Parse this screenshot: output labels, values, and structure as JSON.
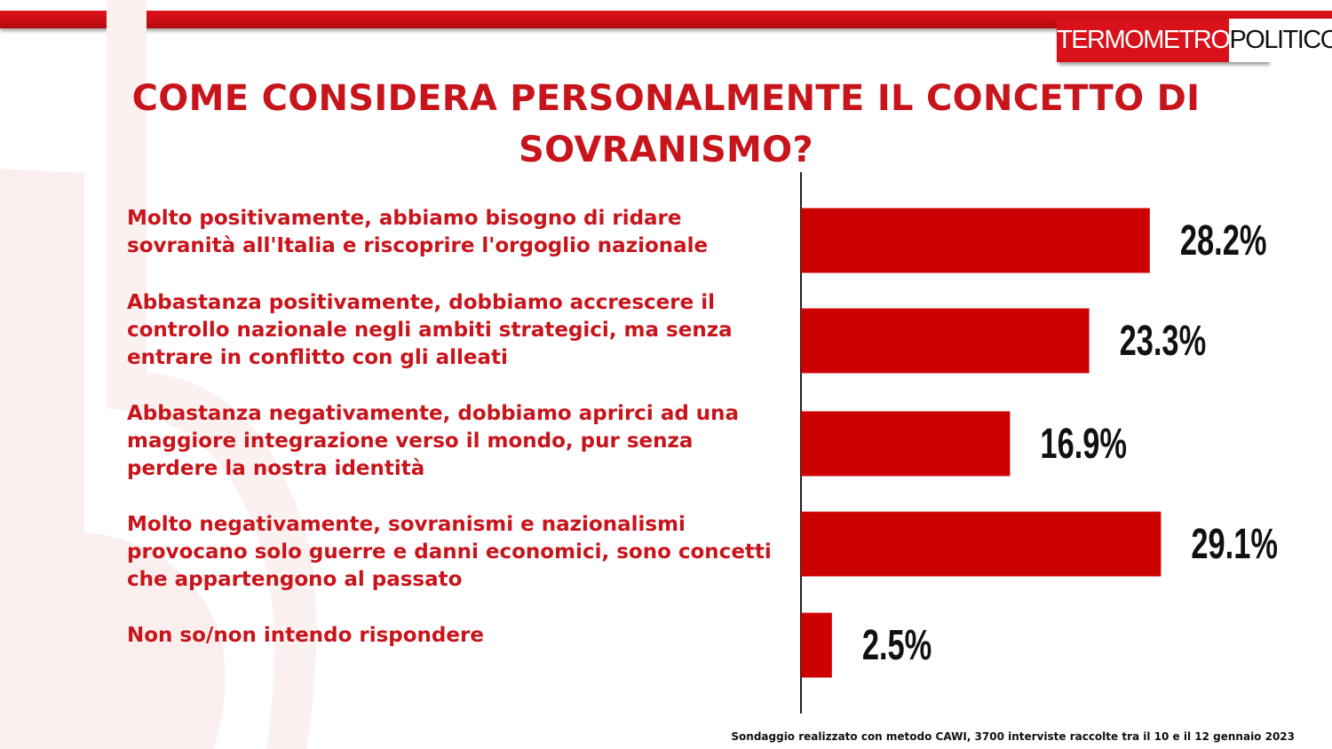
{
  "logo": {
    "left_text": "TERMOMETRO",
    "right_text": "POLITICO"
  },
  "title": "COME CONSIDERA PERSONALMENTE IL CONCETTO DI SOVRANISMO?",
  "chart_data": {
    "type": "bar",
    "orientation": "horizontal",
    "categories": [
      "Molto positivamente, abbiamo bisogno di ridare sovranità all'Italia e riscoprire l'orgoglio nazionale",
      "Abbastanza positivamente, dobbiamo accrescere il controllo nazionale negli ambiti strategici, ma senza entrare in conflitto con gli alleati",
      "Abbastanza negativamente, dobbiamo aprirci ad una maggiore integrazione verso il mondo, pur senza perdere la nostra identità",
      "Molto negativamente, sovranismi e nazionalismi provocano solo guerre e danni economici, sono concetti che appartengono al passato",
      "Non so/non intendo rispondere"
    ],
    "values": [
      28.2,
      23.3,
      16.9,
      29.1,
      2.5
    ],
    "value_labels": [
      "28.2%",
      "23.3%",
      "16.9%",
      "29.1%",
      "2.5%"
    ],
    "bar_color": "#cc0000",
    "grid": false,
    "legend": "none"
  },
  "footnote": "Sondaggio realizzato con metodo CAWI, 3700 interviste raccolte tra il 10 e il 12 gennaio 2023"
}
